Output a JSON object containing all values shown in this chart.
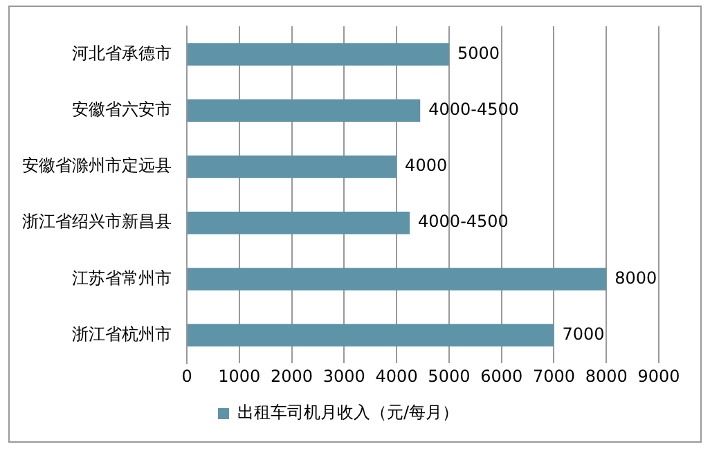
{
  "chart_data": {
    "type": "bar",
    "orientation": "horizontal",
    "categories": [
      "河北省承德市",
      "安徽省六安市",
      "安徽省滁州市定远县",
      "浙江省绍兴市新昌县",
      "江苏省常州市",
      "浙江省杭州市"
    ],
    "series": [
      {
        "name": "出租车司机月收入（元/每月）",
        "color": "#5f93a8",
        "values": [
          5000,
          4450,
          4000,
          4250,
          8000,
          7000
        ],
        "value_labels": [
          "5000",
          "4000-4500",
          "4000",
          "4000-4500",
          "8000",
          "7000"
        ]
      }
    ],
    "xlim": [
      0,
      9000
    ],
    "xticks": [
      0,
      1000,
      2000,
      3000,
      4000,
      5000,
      6000,
      7000,
      8000,
      9000
    ],
    "grid": "x",
    "legend": "bottom"
  }
}
